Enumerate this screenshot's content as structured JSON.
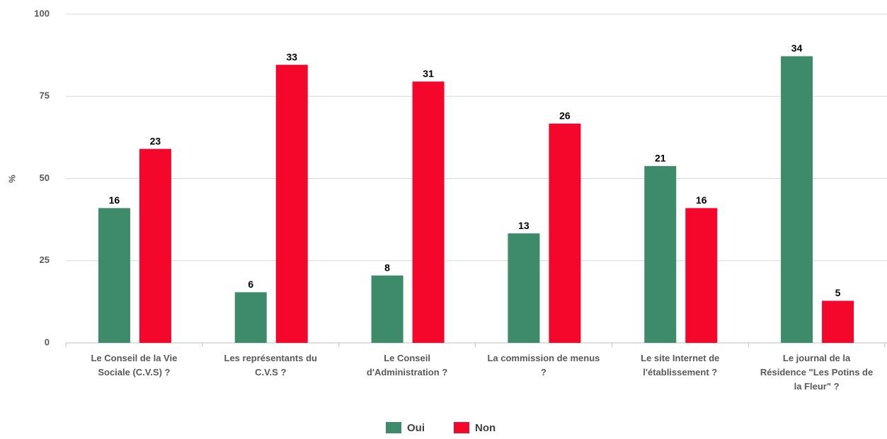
{
  "chart_data": {
    "type": "bar",
    "y_label": "%",
    "categories": [
      "Le Conseil de la Vie Sociale (C.V.S) ?",
      "Les représentants du C.V.S ?",
      "Le Conseil d'Administration ?",
      "La commission de menus ?",
      "Le site Internet de l'établissement ?",
      "Le journal de la Résidence \"Les Potins de la Fleur\" ?"
    ],
    "series": [
      {
        "name": "Oui",
        "color": "#3d8b6b",
        "values": [
          41,
          15.4,
          20.5,
          33.3,
          53.8,
          87.2
        ],
        "counts": [
          16,
          6,
          8,
          13,
          21,
          34
        ]
      },
      {
        "name": "Non",
        "color": "#f5072c",
        "values": [
          59,
          84.6,
          79.5,
          66.7,
          41,
          12.8
        ],
        "counts": [
          23,
          33,
          31,
          26,
          16,
          5
        ]
      }
    ],
    "ylim": [
      0,
      100
    ],
    "yticks": [
      0,
      25,
      50,
      75,
      100
    ],
    "grid": true,
    "legend": "bottom"
  }
}
